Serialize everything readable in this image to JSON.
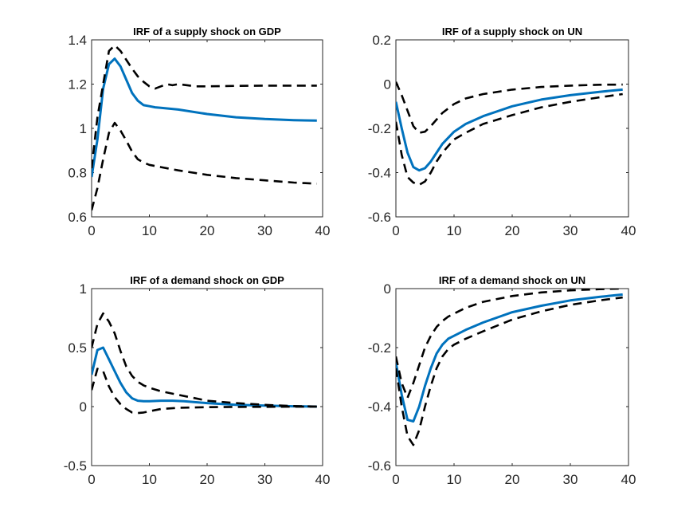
{
  "chart_data": [
    {
      "type": "line",
      "title": "IRF of a supply shock on GDP",
      "xlabel": "",
      "ylabel": "",
      "xlim": [
        0,
        40
      ],
      "ylim": [
        0.6,
        1.4
      ],
      "xticks": [
        "0",
        "10",
        "20",
        "30",
        "40"
      ],
      "yticks": [
        "0.6",
        "0.8",
        "1",
        "1.2",
        "1.4"
      ],
      "grid": false,
      "series": [
        {
          "style": "solid",
          "color": "#0072BD",
          "x": [
            0,
            1,
            2,
            3,
            4,
            5,
            6,
            7,
            8,
            9,
            10,
            11,
            12,
            15,
            20,
            25,
            30,
            35,
            39
          ],
          "y": [
            0.78,
            0.95,
            1.18,
            1.29,
            1.315,
            1.28,
            1.22,
            1.16,
            1.125,
            1.105,
            1.1,
            1.095,
            1.093,
            1.085,
            1.065,
            1.05,
            1.042,
            1.037,
            1.035
          ]
        },
        {
          "style": "dashed",
          "color": "#000000",
          "x": [
            0,
            1,
            2,
            3,
            4,
            5,
            6,
            7,
            8,
            9,
            10,
            11,
            12,
            13,
            14,
            15,
            18,
            20,
            25,
            30,
            35,
            39
          ],
          "y": [
            0.82,
            1.05,
            1.2,
            1.35,
            1.375,
            1.35,
            1.31,
            1.27,
            1.235,
            1.21,
            1.19,
            1.18,
            1.19,
            1.2,
            1.195,
            1.2,
            1.19,
            1.19,
            1.192,
            1.193,
            1.193,
            1.193
          ]
        },
        {
          "style": "dashed",
          "color": "#000000",
          "x": [
            0,
            1,
            2,
            3,
            4,
            5,
            6,
            7,
            8,
            9,
            10,
            12,
            15,
            20,
            25,
            30,
            35,
            39
          ],
          "y": [
            0.63,
            0.73,
            0.86,
            0.98,
            1.025,
            0.99,
            0.945,
            0.895,
            0.86,
            0.845,
            0.835,
            0.825,
            0.81,
            0.79,
            0.775,
            0.765,
            0.755,
            0.75
          ]
        }
      ]
    },
    {
      "type": "line",
      "title": "IRF of a supply shock on UN",
      "xlabel": "",
      "ylabel": "",
      "xlim": [
        0,
        40
      ],
      "ylim": [
        -0.6,
        0.2
      ],
      "xticks": [
        "0",
        "10",
        "20",
        "30",
        "40"
      ],
      "yticks": [
        "-0.6",
        "-0.4",
        "-0.2",
        "0",
        "0.2"
      ],
      "grid": false,
      "series": [
        {
          "style": "solid",
          "color": "#0072BD",
          "x": [
            0,
            1,
            2,
            3,
            4,
            5,
            6,
            7,
            8,
            10,
            12,
            15,
            20,
            25,
            30,
            35,
            39
          ],
          "y": [
            -0.08,
            -0.2,
            -0.31,
            -0.375,
            -0.39,
            -0.38,
            -0.35,
            -0.31,
            -0.27,
            -0.215,
            -0.18,
            -0.145,
            -0.1,
            -0.07,
            -0.05,
            -0.035,
            -0.025
          ]
        },
        {
          "style": "dashed",
          "color": "#000000",
          "x": [
            0,
            1,
            2,
            3,
            4,
            5,
            6,
            7,
            8,
            10,
            12,
            15,
            20,
            25,
            30,
            35,
            39
          ],
          "y": [
            0.01,
            -0.05,
            -0.12,
            -0.19,
            -0.22,
            -0.215,
            -0.19,
            -0.16,
            -0.13,
            -0.09,
            -0.065,
            -0.045,
            -0.025,
            -0.013,
            -0.007,
            -0.003,
            -0.002
          ]
        },
        {
          "style": "dashed",
          "color": "#000000",
          "x": [
            0,
            1,
            2,
            3,
            4,
            5,
            6,
            7,
            8,
            10,
            12,
            15,
            20,
            25,
            30,
            35,
            39
          ],
          "y": [
            -0.17,
            -0.32,
            -0.42,
            -0.445,
            -0.455,
            -0.44,
            -0.4,
            -0.35,
            -0.31,
            -0.25,
            -0.22,
            -0.18,
            -0.14,
            -0.105,
            -0.08,
            -0.06,
            -0.045
          ]
        }
      ]
    },
    {
      "type": "line",
      "title": "IRF of a demand shock on GDP",
      "xlabel": "",
      "ylabel": "",
      "xlim": [
        0,
        40
      ],
      "ylim": [
        -0.5,
        1
      ],
      "xticks": [
        "0",
        "10",
        "20",
        "30",
        "40"
      ],
      "yticks": [
        "-0.5",
        "0",
        "0.5",
        "1"
      ],
      "grid": false,
      "series": [
        {
          "style": "solid",
          "color": "#0072BD",
          "x": [
            0,
            1,
            2,
            3,
            4,
            5,
            6,
            7,
            8,
            9,
            10,
            12,
            14,
            16,
            20,
            25,
            30,
            35,
            39
          ],
          "y": [
            0.27,
            0.48,
            0.5,
            0.4,
            0.3,
            0.2,
            0.12,
            0.07,
            0.05,
            0.045,
            0.045,
            0.05,
            0.05,
            0.045,
            0.03,
            0.015,
            0.008,
            0.003,
            0.0
          ]
        },
        {
          "style": "dashed",
          "color": "#000000",
          "x": [
            0,
            1,
            2,
            3,
            4,
            5,
            6,
            7,
            8,
            9,
            10,
            12,
            15,
            20,
            25,
            30,
            35,
            39
          ],
          "y": [
            0.5,
            0.7,
            0.79,
            0.72,
            0.62,
            0.47,
            0.34,
            0.26,
            0.21,
            0.18,
            0.16,
            0.13,
            0.1,
            0.05,
            0.03,
            0.015,
            0.005,
            0.0
          ]
        },
        {
          "style": "dashed",
          "color": "#000000",
          "x": [
            0,
            1,
            2,
            3,
            4,
            5,
            6,
            7,
            8,
            9,
            10,
            12,
            15,
            20,
            25,
            30,
            35,
            39
          ],
          "y": [
            0.14,
            0.32,
            0.3,
            0.17,
            0.08,
            0.02,
            -0.02,
            -0.05,
            -0.055,
            -0.05,
            -0.04,
            -0.02,
            -0.01,
            -0.005,
            -0.003,
            -0.002,
            -0.001,
            0.0
          ]
        }
      ]
    },
    {
      "type": "line",
      "title": "IRF of a demand shock on UN",
      "xlabel": "",
      "ylabel": "",
      "xlim": [
        0,
        40
      ],
      "ylim": [
        -0.6,
        0
      ],
      "xticks": [
        "0",
        "10",
        "20",
        "30",
        "40"
      ],
      "yticks": [
        "-0.6",
        "-0.4",
        "-0.2",
        "0"
      ],
      "grid": false,
      "series": [
        {
          "style": "solid",
          "color": "#0072BD",
          "x": [
            0,
            1,
            2,
            3,
            4,
            5,
            6,
            7,
            8,
            9,
            10,
            12,
            15,
            20,
            25,
            30,
            35,
            39
          ],
          "y": [
            -0.25,
            -0.36,
            -0.445,
            -0.45,
            -0.4,
            -0.33,
            -0.27,
            -0.22,
            -0.19,
            -0.17,
            -0.16,
            -0.14,
            -0.115,
            -0.08,
            -0.058,
            -0.04,
            -0.028,
            -0.02
          ]
        },
        {
          "style": "dashed",
          "color": "#000000",
          "x": [
            0,
            1,
            2,
            3,
            4,
            5,
            6,
            7,
            8,
            9,
            10,
            12,
            15,
            20,
            25,
            30,
            35,
            39
          ],
          "y": [
            -0.23,
            -0.32,
            -0.37,
            -0.32,
            -0.26,
            -0.2,
            -0.16,
            -0.13,
            -0.11,
            -0.095,
            -0.085,
            -0.065,
            -0.045,
            -0.025,
            -0.013,
            -0.006,
            -0.002,
            0.0
          ]
        },
        {
          "style": "dashed",
          "color": "#000000",
          "x": [
            0,
            1,
            2,
            3,
            4,
            5,
            6,
            7,
            8,
            9,
            10,
            12,
            15,
            20,
            25,
            30,
            35,
            39
          ],
          "y": [
            -0.27,
            -0.4,
            -0.5,
            -0.53,
            -0.48,
            -0.4,
            -0.33,
            -0.27,
            -0.23,
            -0.205,
            -0.19,
            -0.17,
            -0.145,
            -0.105,
            -0.077,
            -0.055,
            -0.04,
            -0.03
          ]
        }
      ]
    }
  ]
}
